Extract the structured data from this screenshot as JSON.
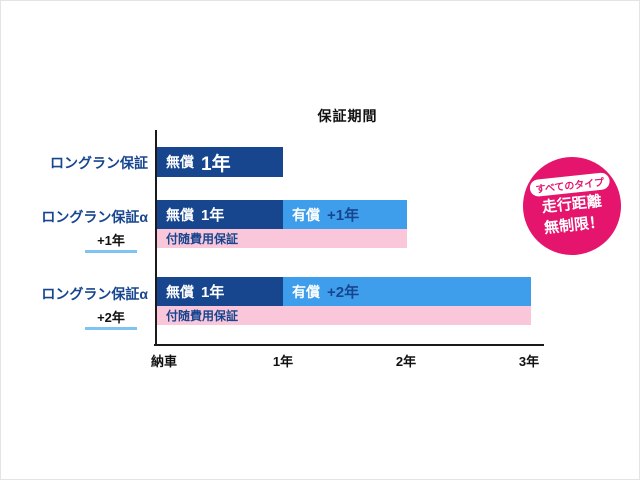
{
  "chart_data": {
    "type": "bar",
    "orientation": "horizontal",
    "title": "保証期間",
    "x_ticks": [
      "納車",
      "1年",
      "2年",
      "3年"
    ],
    "x_range_years": [
      0,
      3
    ],
    "rows": [
      {
        "label": "ロングラン保証",
        "sublabel": "",
        "bars": [
          {
            "kind": "free",
            "label": "無償",
            "term": "1年",
            "start_year": 0,
            "end_year": 1
          }
        ],
        "incidental_label": "",
        "incidental_start_year": null,
        "incidental_end_year": null
      },
      {
        "label": "ロングラン保証α",
        "sublabel": "+1年",
        "bars": [
          {
            "kind": "free",
            "label": "無償",
            "term": "1年",
            "start_year": 0,
            "end_year": 1
          },
          {
            "kind": "paid",
            "label": "有償",
            "term": "+1年",
            "start_year": 1,
            "end_year": 2
          }
        ],
        "incidental_label": "付随費用保証",
        "incidental_start_year": 0,
        "incidental_end_year": 2
      },
      {
        "label": "ロングラン保証α",
        "sublabel": "+2年",
        "bars": [
          {
            "kind": "free",
            "label": "無償",
            "term": "1年",
            "start_year": 0,
            "end_year": 1
          },
          {
            "kind": "paid",
            "label": "有償",
            "term": "+2年",
            "start_year": 1,
            "end_year": 3
          }
        ],
        "incidental_label": "付随費用保証",
        "incidental_start_year": 0,
        "incidental_end_year": 3
      }
    ],
    "colors": {
      "free_bar": "#17468f",
      "paid_bar": "#3f9eec",
      "incidental_bar": "#f9c6da",
      "badge": "#e5156d",
      "row_label_text": "#17468f",
      "sublabel_underline": "#7ec3f2"
    }
  },
  "badge": {
    "line1": "すべてのタイプ",
    "line2": "走行距離",
    "line3": "無制限！"
  }
}
